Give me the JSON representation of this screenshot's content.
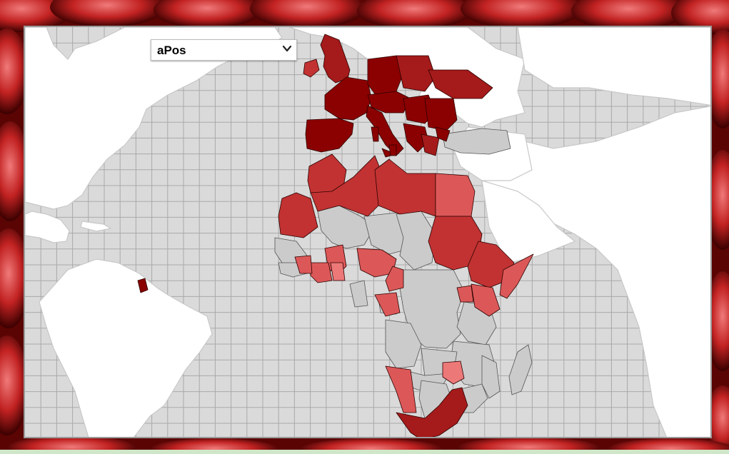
{
  "colors": {
    "frame_background": "#7a0a0a",
    "ocean": "#dadada",
    "grid": "#a9a9a9",
    "unmapped_land": "#ffffff",
    "no_data_country": "#cbcbcb",
    "level_1": "#8b0000",
    "level_2": "#a51a1a",
    "level_3": "#c23232",
    "level_4": "#dc5858",
    "level_5": "#ec7878"
  },
  "layer_select": {
    "selected": "aPos",
    "options": [
      "aPos"
    ]
  },
  "icons": {
    "dropdown": "chevron-down-icon"
  }
}
